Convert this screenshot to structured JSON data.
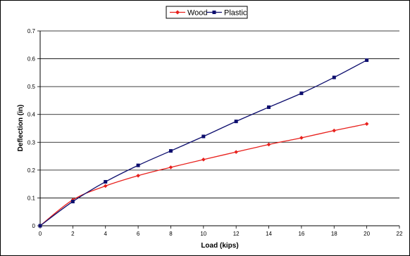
{
  "chart_data": {
    "type": "line",
    "xlabel": "Load (kips)",
    "ylabel": "Deflection (in)",
    "xlim": [
      0,
      22
    ],
    "ylim": [
      0,
      0.7
    ],
    "xticks": [
      "0",
      "2",
      "4",
      "6",
      "8",
      "10",
      "12",
      "14",
      "16",
      "18",
      "20",
      "22"
    ],
    "yticks": [
      "0",
      "0.1",
      "0.2",
      "0.3",
      "0.4",
      "0.5",
      "0.6",
      "0.7"
    ],
    "grid": "horizontal",
    "legend_position": "top-center",
    "series": [
      {
        "name": "Wood",
        "color": "#e8201c",
        "marker": "diamond",
        "x": [
          0,
          2,
          4,
          6,
          8,
          10,
          12,
          14,
          16,
          18,
          20
        ],
        "y": [
          0.0,
          0.093,
          0.143,
          0.18,
          0.21,
          0.238,
          0.265,
          0.292,
          0.316,
          0.342,
          0.366
        ]
      },
      {
        "name": "Plastic",
        "color": "#0d0e6e",
        "marker": "square",
        "x": [
          0,
          2,
          4,
          6,
          8,
          10,
          12,
          14,
          16,
          18,
          20
        ],
        "y": [
          0.0,
          0.087,
          0.158,
          0.217,
          0.269,
          0.321,
          0.375,
          0.426,
          0.476,
          0.533,
          0.595
        ]
      }
    ]
  }
}
